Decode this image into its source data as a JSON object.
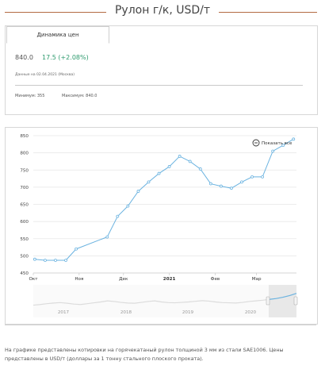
{
  "page": {
    "title": "Рулон г/к, USD/т"
  },
  "summary": {
    "tab_label": "Динамика цен",
    "price": "840.0",
    "change": "17.5 (+2.08%)",
    "date_note": "Данные на 02.04.2021 (Москва)",
    "min_label": "Минимум: 355",
    "max_label": "Максимум: 840.0"
  },
  "chart_controls": {
    "show_all_label": "Показать все"
  },
  "colors": {
    "accent": "#b36b44",
    "series": "#6bb3e0",
    "change_positive": "#2e9b6e"
  },
  "chart_data": {
    "type": "line",
    "title": "",
    "xlabel": "",
    "ylabel": "",
    "ylim": [
      450,
      850
    ],
    "yticks": [
      450,
      500,
      550,
      600,
      650,
      700,
      750,
      800,
      850
    ],
    "x_tick_labels": [
      "Окт",
      "Ноя",
      "Дек",
      "2021",
      "Фев",
      "Мар"
    ],
    "x_tick_bold": [
      false,
      false,
      false,
      true,
      false,
      false
    ],
    "grid": true,
    "series": [
      {
        "x": [
          "2020-10-02",
          "2020-10-09",
          "2020-10-16",
          "2020-10-23",
          "2020-10-30",
          "2020-11-20",
          "2020-11-27",
          "2020-12-04",
          "2020-12-11",
          "2020-12-18",
          "2020-12-25",
          "2021-01-01",
          "2021-01-08",
          "2021-01-15",
          "2021-01-22",
          "2021-01-29",
          "2021-02-05",
          "2021-02-12",
          "2021-02-19",
          "2021-02-26",
          "2021-03-05",
          "2021-03-12",
          "2021-03-19",
          "2021-03-26"
        ],
        "values": [
          490,
          487,
          487,
          487,
          520,
          555,
          615,
          645,
          688,
          715,
          740,
          760,
          790,
          775,
          753,
          710,
          703,
          697,
          715,
          730,
          730,
          805,
          822,
          840
        ]
      }
    ],
    "navigator": {
      "year_labels": [
        "2017",
        "2018",
        "2019",
        "2020"
      ]
    }
  },
  "footer": {
    "text": "На графике представлены котировки на горячекатаный рулон толщиной 3 мм из стали SAE1006. Цены представлены в USD/т (доллары за 1 тонну стального плоского проката)."
  }
}
